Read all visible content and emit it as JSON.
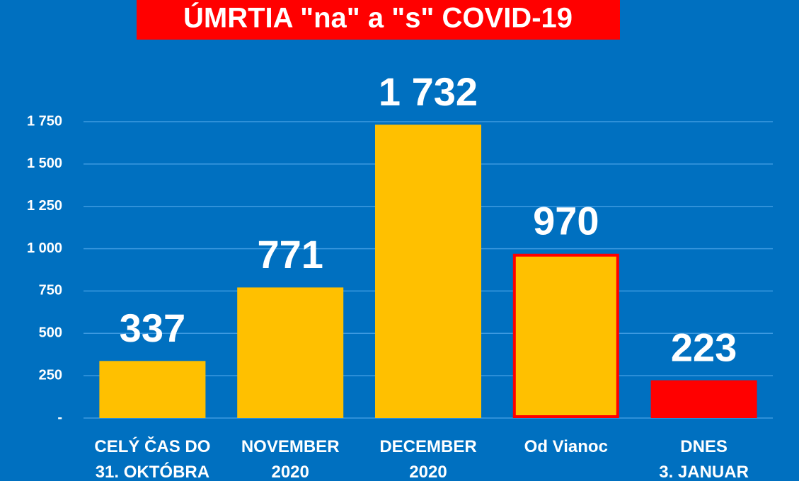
{
  "chart_data": {
    "type": "bar",
    "title": "ÚMRTIA \"na\" a \"s\" COVID-19",
    "categories": [
      "CELÝ ČAS DO\n31. OKTÓBRA",
      "NOVEMBER\n2020",
      "DECEMBER\n2020",
      "Od Vianoc",
      "DNES\n3. JANUAR"
    ],
    "values": [
      337,
      771,
      1732,
      970,
      223
    ],
    "value_labels": [
      "337",
      "771",
      "1 732",
      "970",
      "223"
    ],
    "colors": [
      "#FFC000",
      "#FFC000",
      "#FFC000",
      "#FFC000",
      "#FF0000"
    ],
    "edge_colors": [
      "#FFC000",
      "#FFC000",
      "#FFC000",
      "#FF0000",
      "#FF0000"
    ],
    "ylim": [
      0,
      1750
    ],
    "yticks": [
      {
        "value": 0,
        "label": "-"
      },
      250,
      500,
      750,
      {
        "value": 1000,
        "label": "1 000"
      },
      {
        "value": 1250,
        "label": "1 250"
      },
      {
        "value": 1500,
        "label": "1 500"
      },
      {
        "value": 1750,
        "label": "1 750"
      }
    ],
    "grid": true
  }
}
